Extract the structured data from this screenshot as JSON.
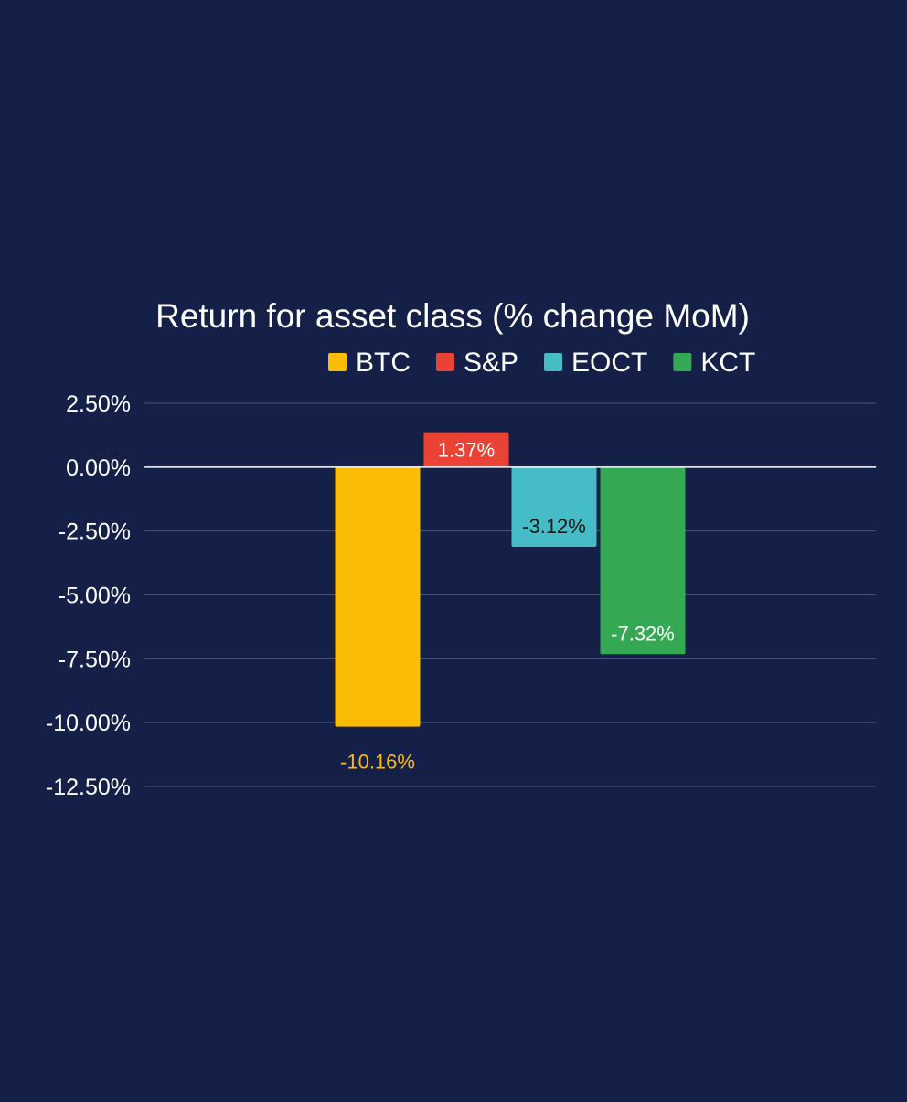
{
  "colors": {
    "background": "#152048",
    "text": "#ffffff",
    "gridline": "#4a5578",
    "zero_line": "#ffffff"
  },
  "chart_data": {
    "type": "bar",
    "title": "Return for asset class (% change MoM)",
    "xlabel": "",
    "ylabel": "",
    "ylim": [
      -12.5,
      2.5
    ],
    "y_ticks": [
      2.5,
      0,
      -2.5,
      -5,
      -7.5,
      -10,
      -12.5
    ],
    "y_tick_labels": [
      "2.50%",
      "0.00%",
      "-2.50%",
      "-5.00%",
      "-7.50%",
      "-10.00%",
      "-12.50%"
    ],
    "grid": true,
    "legend_position": "top",
    "series": [
      {
        "name": "BTC",
        "value": -10.16,
        "label": "-10.16%",
        "color": "#fbbc05",
        "label_color": "#fbbc05",
        "label_placement": "outside"
      },
      {
        "name": "S&P",
        "value": 1.37,
        "label": "1.37%",
        "color": "#ea4335",
        "label_color": "#ffffff",
        "label_placement": "inside"
      },
      {
        "name": "EOCT",
        "value": -3.12,
        "label": "-3.12%",
        "color": "#46bdc6",
        "label_color": "#1a1a1a",
        "label_placement": "inside"
      },
      {
        "name": "KCT",
        "value": -7.32,
        "label": "-7.32%",
        "color": "#34a853",
        "label_color": "#ffffff",
        "label_placement": "inside"
      }
    ]
  }
}
